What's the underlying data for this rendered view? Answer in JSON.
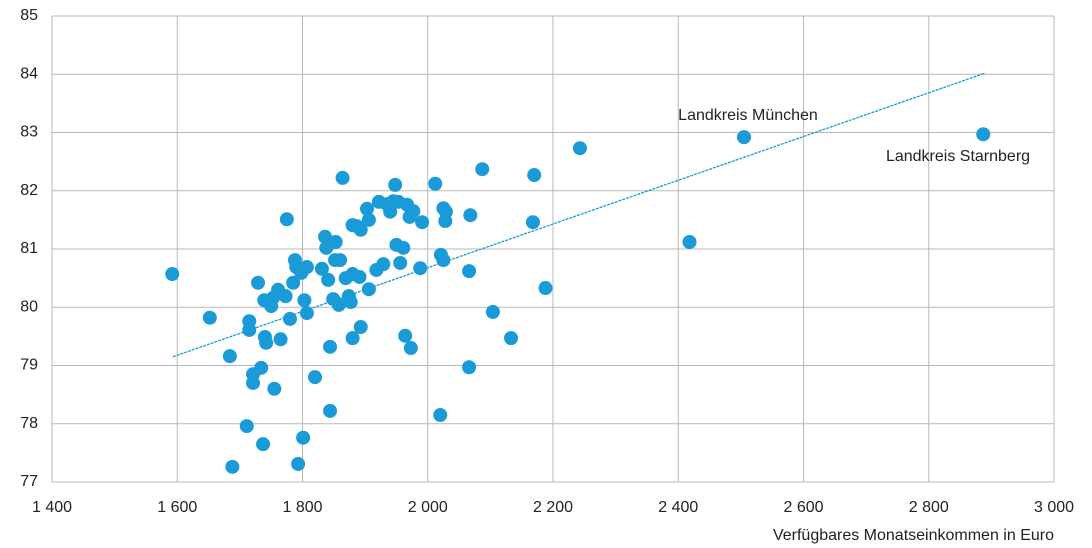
{
  "chart_data": {
    "type": "scatter",
    "x_label": "Verfügbares Monatseinkommen in Euro",
    "annotations": [
      "Landkreis München",
      "Landkreis Starnberg"
    ],
    "color": "#1a9ad6",
    "grid": true,
    "xlim": [
      1400,
      3000
    ],
    "xticks": [
      {
        "value": 1400,
        "label": "1 400"
      },
      {
        "value": 1600,
        "label": "1 600"
      },
      {
        "value": 1800,
        "label": "1 800"
      },
      {
        "value": 2000,
        "label": "2 000"
      },
      {
        "value": 2200,
        "label": "2 200"
      },
      {
        "value": 2400,
        "label": "2 400"
      },
      {
        "value": 2600,
        "label": "2 600"
      },
      {
        "value": 2800,
        "label": "2 800"
      },
      {
        "value": 3000,
        "label": "3 000"
      }
    ],
    "ylim": [
      77,
      85
    ],
    "yticks": [
      77,
      78,
      79,
      80,
      81,
      82,
      83,
      84,
      85
    ],
    "trendline": {
      "x": [
        1593,
        2890
      ],
      "values": [
        79.15,
        84.02
      ]
    },
    "x": [
      1592,
      1652,
      1684,
      1688,
      1711,
      1715,
      1715,
      1721,
      1721,
      1729,
      1734,
      1737,
      1739,
      1740,
      1742,
      1750,
      1753,
      1755,
      1761,
      1765,
      1773,
      1775,
      1780,
      1785,
      1788,
      1790,
      1793,
      1798,
      1801,
      1803,
      1807,
      1807,
      1820,
      1831,
      1836,
      1838,
      1841,
      1844,
      1844,
      1849,
      1852,
      1853,
      1858,
      1860,
      1864,
      1869,
      1874,
      1877,
      1880,
      1880,
      1880,
      1887,
      1891,
      1893,
      1893,
      1903,
      1906,
      1906,
      1918,
      1922,
      1929,
      1935,
      1940,
      1945,
      1948,
      1950,
      1953,
      1956,
      1961,
      1964,
      1967,
      1971,
      1973,
      1977,
      1988,
      1991,
      2012,
      2020,
      2021,
      2025,
      2025,
      2028,
      2029,
      2066,
      2066,
      2068,
      2087,
      2104,
      2133,
      2168,
      2170,
      2188,
      2243,
      2418,
      2505,
      2887
    ],
    "values": [
      80.57,
      79.82,
      79.16,
      77.26,
      77.96,
      79.76,
      79.61,
      78.85,
      78.7,
      80.42,
      78.96,
      77.65,
      80.12,
      79.49,
      79.39,
      80.02,
      80.16,
      78.6,
      80.3,
      79.45,
      80.19,
      81.51,
      79.8,
      80.42,
      80.81,
      80.69,
      77.31,
      80.59,
      77.76,
      80.12,
      79.9,
      80.69,
      78.8,
      80.66,
      81.21,
      81.02,
      80.47,
      78.22,
      79.32,
      80.14,
      80.81,
      81.12,
      80.04,
      80.81,
      82.22,
      80.5,
      80.19,
      80.09,
      80.57,
      81.41,
      79.47,
      81.39,
      80.52,
      79.66,
      81.33,
      81.69,
      80.31,
      81.5,
      80.64,
      81.81,
      80.74,
      81.77,
      81.64,
      81.82,
      82.1,
      81.07,
      81.81,
      80.76,
      81.02,
      79.51,
      81.76,
      81.55,
      79.3,
      81.65,
      80.67,
      81.46,
      82.12,
      78.15,
      80.9,
      81.7,
      80.81,
      81.48,
      81.64,
      80.62,
      78.97,
      81.58,
      82.37,
      79.92,
      79.47,
      81.46,
      82.27,
      80.33,
      82.73,
      81.12,
      82.92,
      82.97
    ]
  }
}
